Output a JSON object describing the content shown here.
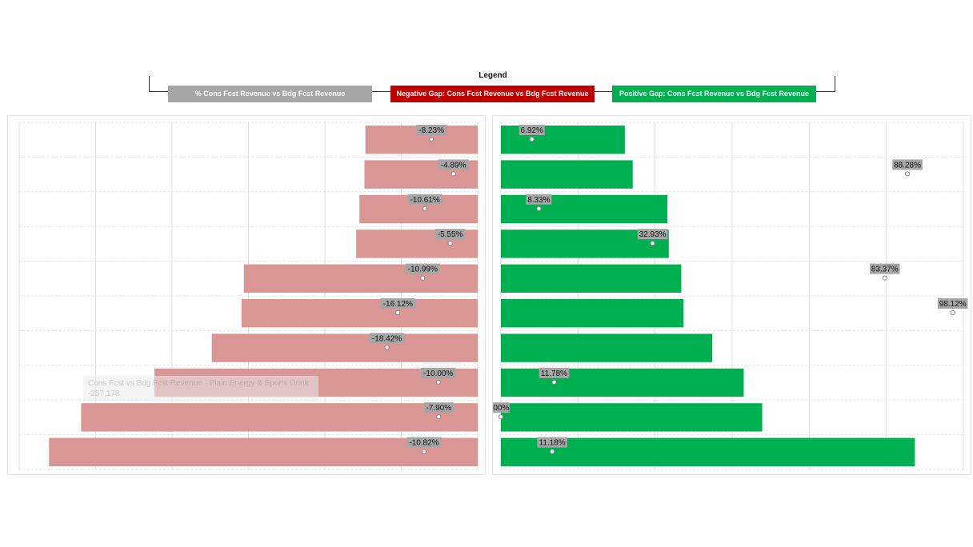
{
  "legend": {
    "title": "Legend",
    "items": [
      {
        "label": "% Cons Fcst Revenue vs Bdg Fcst Revenue",
        "color": "#a6a6a6"
      },
      {
        "label": "Negative Gap: Cons Fcst Revenue vs Bdg Fcst Revenue",
        "color": "#c00000"
      },
      {
        "label": "Positive Gap: Cons Fcst Revenue vs Bdg Fcst Revenue",
        "color": "#00b050"
      }
    ]
  },
  "tooltip": {
    "title": "Cons Fcst vs Bdg Fcst Revenue - Plain Energy & Sports Drink",
    "value": "-257,178"
  },
  "chart_data": [
    {
      "type": "bar",
      "name": "Negative Gap",
      "orientation": "horizontal",
      "direction": "leftward",
      "bar_color": "#d99694",
      "relative_values": [
        0.245,
        0.247,
        0.258,
        0.265,
        0.51,
        0.515,
        0.58,
        0.705,
        0.865,
        0.935
      ],
      "pct_labels": [
        "-8.23%",
        "-4.89%",
        "-10.61%",
        "-5.55%",
        "-10.99%",
        "-16.12%",
        "-18.42%",
        "-10.00%",
        "-7.90%",
        "-10.82%"
      ],
      "pct_positions": [
        0.101,
        0.053,
        0.115,
        0.06,
        0.12,
        0.174,
        0.198,
        0.086,
        0.085,
        0.117
      ],
      "grid": true
    },
    {
      "type": "bar",
      "name": "Positive Gap",
      "orientation": "horizontal",
      "direction": "rightward",
      "bar_color": "#00b050",
      "relative_values": [
        0.268,
        0.285,
        0.36,
        0.363,
        0.39,
        0.395,
        0.457,
        0.525,
        0.565,
        0.895
      ],
      "pct_labels": [
        "6.92%",
        "88.28%",
        "8.33%",
        "32.93%",
        "83.37%",
        "98.12%",
        "",
        "11.78%",
        "00%",
        "11.18%"
      ],
      "pct_positions": [
        0.067,
        0.879,
        0.082,
        0.328,
        0.83,
        0.977,
        null,
        0.115,
        0.0,
        0.111
      ],
      "grid": true
    }
  ]
}
